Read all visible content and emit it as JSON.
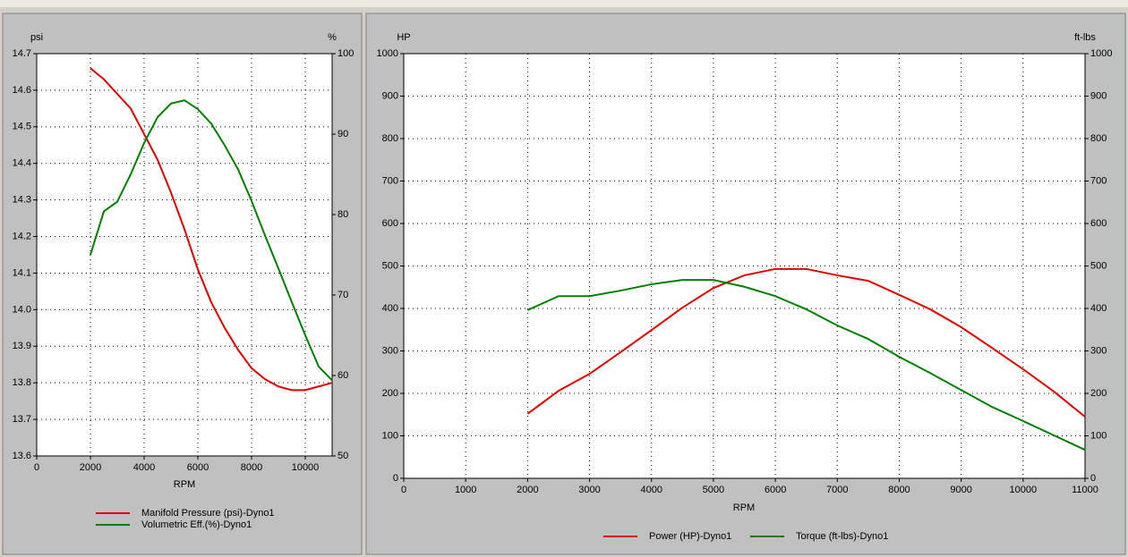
{
  "chart_data": [
    {
      "type": "line",
      "x_label": "RPM",
      "y_label": "psi",
      "y2_label": "%",
      "x": [
        2000,
        2500,
        3000,
        3500,
        4000,
        4500,
        5000,
        5500,
        6000,
        6500,
        7000,
        7500,
        8000,
        8500,
        9000,
        9500,
        10000,
        10500,
        11000
      ],
      "xlim": [
        0,
        11000
      ],
      "xticks": [
        0,
        2000,
        4000,
        6000,
        8000,
        10000
      ],
      "ylim": [
        13.6,
        14.7
      ],
      "yticks": [
        13.6,
        13.7,
        13.8,
        13.9,
        {
          "value": 14,
          "label": "14.0"
        },
        14.1,
        14.2,
        14.3,
        14.4,
        14.5,
        14.6,
        14.7
      ],
      "y2lim": [
        50,
        100
      ],
      "y2ticks": [
        50,
        60,
        70,
        80,
        90,
        100
      ],
      "grid": true,
      "legend": "bottom",
      "series": [
        {
          "name": "Manifold Pressure (psi)-Dyno1",
          "color": "#e00000",
          "values": [
            14.66,
            14.63,
            14.59,
            14.55,
            14.48,
            14.41,
            14.32,
            14.22,
            14.11,
            14.02,
            13.95,
            13.89,
            13.84,
            13.81,
            13.79,
            13.78,
            13.78,
            13.79,
            13.8
          ]
        },
        {
          "name": "Volumetric Eff.(%)-Dyno1",
          "color": "#008000",
          "axis": "y2",
          "values": [
            75,
            80.4,
            81.6,
            85,
            88.9,
            92.1,
            93.8,
            94.2,
            93.1,
            91.3,
            88.6,
            85.6,
            81.7,
            77.4,
            73.3,
            69.1,
            65,
            61.1,
            59.4
          ]
        }
      ]
    },
    {
      "type": "line",
      "x_label": "RPM",
      "y_label": "HP",
      "y2_label": "ft-lbs",
      "x": [
        2000,
        2500,
        3000,
        3500,
        4000,
        4500,
        5000,
        5500,
        6000,
        6500,
        7000,
        7500,
        8000,
        8500,
        9000,
        9500,
        10000,
        10500,
        11000
      ],
      "xlim": [
        0,
        11000
      ],
      "xticks": [
        0,
        1000,
        2000,
        3000,
        4000,
        5000,
        6000,
        7000,
        8000,
        9000,
        10000,
        11000
      ],
      "ylim": [
        0,
        1000
      ],
      "yticks": [
        0,
        100,
        200,
        300,
        400,
        500,
        600,
        700,
        800,
        900,
        1000
      ],
      "y2lim": [
        0,
        1000
      ],
      "y2ticks": [
        0,
        100,
        200,
        300,
        400,
        500,
        600,
        700,
        800,
        900,
        1000
      ],
      "grid": true,
      "legend": "bottom",
      "series": [
        {
          "name": "Power (HP)-Dyno1",
          "color": "#e00000",
          "values": [
            152,
            206,
            246,
            297,
            349,
            402,
            448,
            478,
            493,
            493,
            478,
            465,
            432,
            398,
            356,
            307,
            257,
            204,
            145
          ]
        },
        {
          "name": "Torque (ft-lbs)-Dyno1",
          "color": "#008000",
          "axis": "y2",
          "values": [
            396,
            429,
            429,
            442,
            457,
            467,
            467,
            451,
            429,
            398,
            360,
            328,
            286,
            248,
            208,
            168,
            135,
            101,
            67
          ]
        }
      ]
    }
  ]
}
